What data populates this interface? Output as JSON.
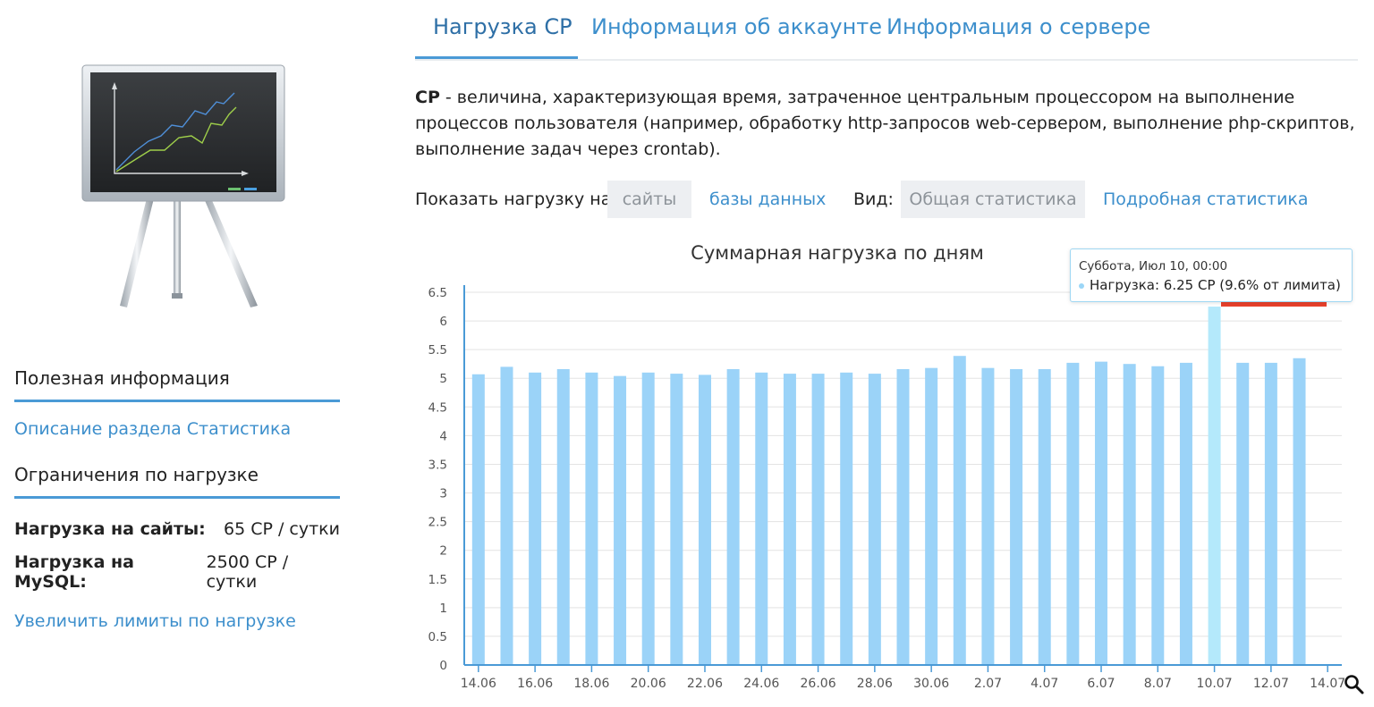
{
  "sidebar": {
    "useful_heading": "Полезная информация",
    "description_link": "Описание раздела Статистика",
    "limits_heading": "Ограничения по нагрузке",
    "limits": [
      {
        "label": "Нагрузка на сайты:",
        "value": "65 CP / сутки"
      },
      {
        "label": "Нагрузка на MySQL:",
        "value": "2500 CP / сутки"
      }
    ],
    "increase_link": "Увеличить лимиты по нагрузке",
    "illustration_icon": "chalkboard-easel-chart-icon"
  },
  "tabs": [
    {
      "label": "Нагрузка CP",
      "active": true
    },
    {
      "label": "Информация об аккаунте",
      "active": false
    },
    {
      "label": "Информация о сервере",
      "active": false
    }
  ],
  "description": {
    "term": "CP",
    "text": " - величина, характеризующая время, затраченное центральным процессором на выполнение процессов пользователя (например, обработку http-запросов web-сервером, выполнение php-скриптов, выполнение задач через crontab)."
  },
  "filters": {
    "show_label": "Показать нагрузку на:",
    "sites": "сайты",
    "databases": "базы данных",
    "view_label": "Вид:",
    "general": "Общая статистика",
    "detailed": "Подробная статистика"
  },
  "tooltip": {
    "date": "Суббота, Июл 10, 00:00",
    "text": "Нагрузка: 6.25 CP (9.6% от лимита)"
  },
  "colors": {
    "bar": "#9bd3f8",
    "bar_highlight": "#b4e9fb",
    "limit_marker": "#e8412c",
    "accent": "#4a9ad6"
  },
  "chart_data": {
    "type": "bar",
    "title": "Суммарная нагрузка по дням",
    "xlabel": "",
    "ylabel": "",
    "ylim": [
      0,
      6.5
    ],
    "yticks": [
      0,
      0.5,
      1,
      1.5,
      2,
      2.5,
      3,
      3.5,
      4,
      4.5,
      5,
      5.5,
      6,
      6.5
    ],
    "categories": [
      "14.06",
      "15.06",
      "16.06",
      "17.06",
      "18.06",
      "19.06",
      "20.06",
      "21.06",
      "22.06",
      "23.06",
      "24.06",
      "25.06",
      "26.06",
      "27.06",
      "28.06",
      "29.06",
      "30.06",
      "1.07",
      "2.07",
      "3.07",
      "4.07",
      "5.07",
      "6.07",
      "7.07",
      "8.07",
      "9.07",
      "10.07",
      "11.07",
      "12.07",
      "13.07",
      "14.07"
    ],
    "xtick_labels": [
      "14.06",
      "16.06",
      "18.06",
      "20.06",
      "22.06",
      "24.06",
      "26.06",
      "28.06",
      "30.06",
      "2.07",
      "4.07",
      "6.07",
      "8.07",
      "10.07",
      "12.07",
      "14.07"
    ],
    "values": [
      5.07,
      5.2,
      5.1,
      5.16,
      5.1,
      5.04,
      5.1,
      5.08,
      5.06,
      5.16,
      5.1,
      5.08,
      5.08,
      5.1,
      5.08,
      5.16,
      5.18,
      5.39,
      5.18,
      5.16,
      5.16,
      5.27,
      5.29,
      5.25,
      5.21,
      5.27,
      6.25,
      5.27,
      5.27,
      5.35,
      null
    ],
    "highlight_index": 26,
    "grid": true,
    "legend": "none"
  }
}
